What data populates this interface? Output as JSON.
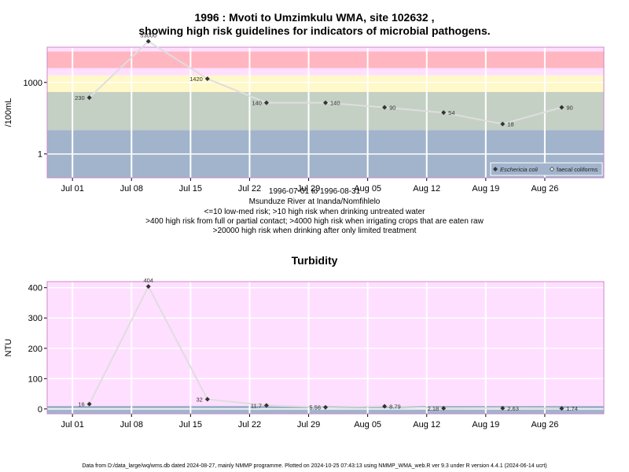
{
  "text": {
    "title_line1": "1996 : Mvoti to Umzimkulu WMA, site 102632 ,",
    "title_line2": "showing high risk guidelines for indicators of microbial pathogens.",
    "date_range": "1996-07-01 to 1996-08-31",
    "site_name": "Msunduze River at Inanda/Nomfihlelo",
    "risk_line1": "<=10 low-med risk; >10 high risk when drinking untreated water",
    "risk_line2": ">400 high risk from full or partial contact; >4000 high risk when irrigating crops that are eaten raw",
    "risk_line3": ">20000 high risk when drinking after only limited treatment",
    "turbidity_title": "Turbidity",
    "footer": "Data from D:/data_large/wq/wms.db dated 2024-08-27, mainly NMMP programme. Plotted on 2024-10-25 07:43:13 using NMMP_WMA_web.R ver 9.3 under R version 4.4.1 (2024-06-14 ucrt)"
  },
  "colors": {
    "band_red": "#ffb6c1",
    "band_pink": "#ffdfff",
    "band_yellow": "#fff8c8",
    "band_green": "#c4d0c4",
    "band_blue": "#a2b4cc",
    "ntu_bg": "#ffdfff",
    "line": "#dedede",
    "marker": "#333333",
    "frame": "#cc88cc"
  },
  "chart_data": [
    {
      "type": "line",
      "ylabel": "/100mL",
      "xlabel": "",
      "yscale": "log",
      "ylim": [
        0.1,
        30000
      ],
      "xlim": [
        "1996-06-28",
        "1996-09-02"
      ],
      "x_ticks": [
        {
          "date": "1996-07-01",
          "label": "Jul 01"
        },
        {
          "date": "1996-07-08",
          "label": "Jul 08"
        },
        {
          "date": "1996-07-15",
          "label": "Jul 15"
        },
        {
          "date": "1996-07-22",
          "label": "Jul 22"
        },
        {
          "date": "1996-07-29",
          "label": "Jul 29"
        },
        {
          "date": "1996-08-05",
          "label": "Aug 05"
        },
        {
          "date": "1996-08-12",
          "label": "Aug 12"
        },
        {
          "date": "1996-08-19",
          "label": "Aug 19"
        },
        {
          "date": "1996-08-26",
          "label": "Aug 26"
        }
      ],
      "y_ticks": [
        {
          "value": 1,
          "label": "1"
        },
        {
          "value": 1000,
          "label": "1000"
        }
      ],
      "bands": [
        {
          "from": 0.1,
          "to": 10,
          "color": "band_blue"
        },
        {
          "from": 10,
          "to": 400,
          "color": "band_green"
        },
        {
          "from": 400,
          "to": 2000,
          "color": "band_yellow"
        },
        {
          "from": 2000,
          "to": 4000,
          "color": "band_pink"
        },
        {
          "from": 4000,
          "to": 20000,
          "color": "band_red"
        },
        {
          "from": 20000,
          "to": 30000,
          "color": "band_pink"
        }
      ],
      "legend": {
        "position": "bottom-right",
        "entries": [
          "Eschericia coli",
          "faecal coliforms"
        ]
      },
      "series": [
        {
          "name": "Eschericia coli",
          "x": [
            "1996-07-03",
            "1996-07-10",
            "1996-07-17",
            "1996-07-24",
            "1996-07-31",
            "1996-08-07",
            "1996-08-14",
            "1996-08-21",
            "1996-08-28"
          ],
          "values": [
            230,
            53000,
            1420,
            140,
            140,
            90,
            54,
            18,
            90
          ],
          "labels": [
            "230",
            "53000",
            "1420",
            "140",
            "140",
            "90",
            "54",
            "18",
            "90"
          ],
          "label_side": [
            "left",
            "above",
            "left",
            "left",
            "right",
            "right",
            "right",
            "right",
            "right"
          ]
        }
      ]
    },
    {
      "type": "line",
      "title": "Turbidity",
      "ylabel": "NTU",
      "xlabel": "",
      "ylim": [
        -16,
        420
      ],
      "xlim": [
        "1996-06-28",
        "1996-09-02"
      ],
      "x_ticks": [
        {
          "date": "1996-07-01",
          "label": "Jul 01"
        },
        {
          "date": "1996-07-08",
          "label": "Jul 08"
        },
        {
          "date": "1996-07-15",
          "label": "Jul 15"
        },
        {
          "date": "1996-07-22",
          "label": "Jul 22"
        },
        {
          "date": "1996-07-29",
          "label": "Jul 29"
        },
        {
          "date": "1996-08-05",
          "label": "Aug 05"
        },
        {
          "date": "1996-08-12",
          "label": "Aug 12"
        },
        {
          "date": "1996-08-19",
          "label": "Aug 19"
        },
        {
          "date": "1996-08-26",
          "label": "Aug 26"
        }
      ],
      "y_ticks": [
        {
          "value": 0,
          "label": "0"
        },
        {
          "value": 100,
          "label": "100"
        },
        {
          "value": 200,
          "label": "200"
        },
        {
          "value": 300,
          "label": "300"
        },
        {
          "value": 400,
          "label": "400"
        }
      ],
      "bands": [
        {
          "from": -16,
          "to": 10,
          "color": "band_blue"
        },
        {
          "from": 10,
          "to": 420,
          "color": "band_pink"
        }
      ],
      "series": [
        {
          "name": "Turbidity",
          "x": [
            "1996-07-03",
            "1996-07-10",
            "1996-07-17",
            "1996-07-24",
            "1996-07-31",
            "1996-08-07",
            "1996-08-14",
            "1996-08-21",
            "1996-08-28"
          ],
          "values": [
            16,
            404,
            32,
            11.7,
            5.56,
            8.79,
            2.18,
            2.63,
            1.74
          ],
          "labels": [
            "16",
            "404",
            "32",
            "11.7",
            "5.56",
            "8.79",
            "2.18",
            "2.63",
            "1.74"
          ],
          "label_side": [
            "left",
            "above",
            "left",
            "left",
            "left",
            "right",
            "left",
            "right",
            "right"
          ]
        }
      ]
    }
  ]
}
